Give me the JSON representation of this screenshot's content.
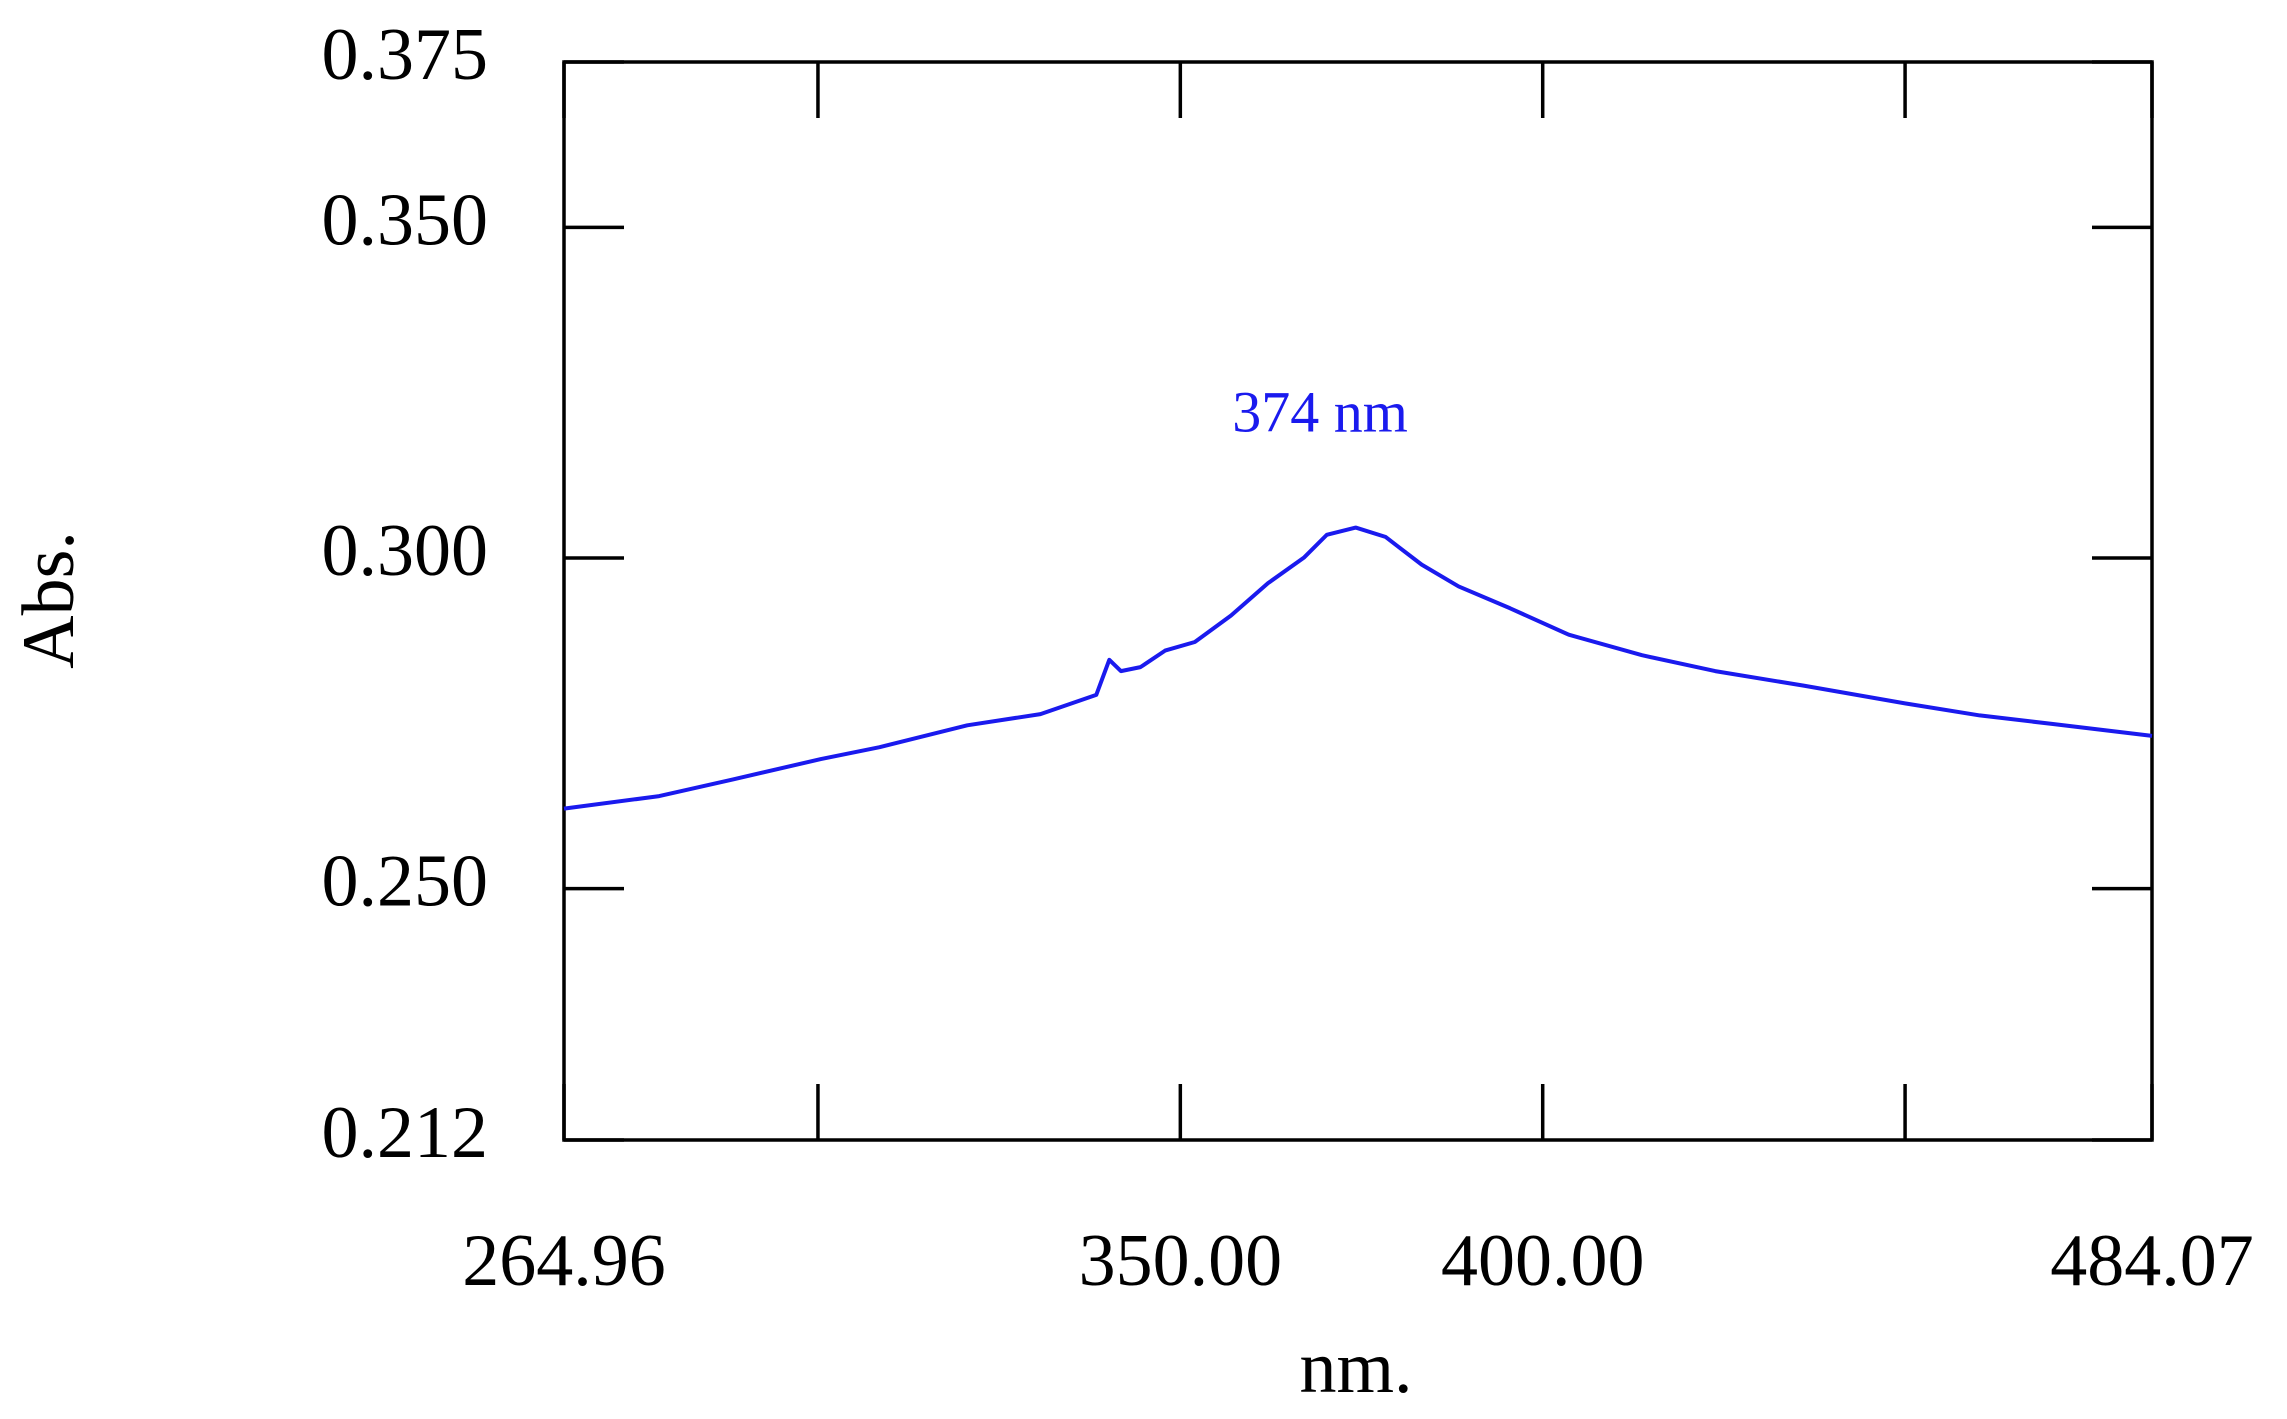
{
  "chart_data": {
    "type": "line",
    "xlabel": "nm.",
    "ylabel": "Abs.",
    "annotation": "374 nm",
    "color": "#1a1aee",
    "x": [
      264.96,
      278.1,
      288.2,
      300.4,
      308.5,
      320.6,
      330.7,
      338.4,
      340.2,
      341.8,
      344.5,
      347.9,
      352.0,
      357.0,
      362.1,
      367.1,
      370.2,
      374.2,
      378.3,
      383.3,
      388.4,
      395.5,
      403.6,
      413.7,
      423.8,
      436.0,
      450.1,
      460.3,
      470.4,
      484.07
    ],
    "values": [
      0.2621,
      0.264,
      0.2665,
      0.2696,
      0.2714,
      0.2747,
      0.2764,
      0.2793,
      0.2846,
      0.2829,
      0.2835,
      0.286,
      0.2873,
      0.2913,
      0.2962,
      0.3001,
      0.3035,
      0.3046,
      0.3032,
      0.299,
      0.2957,
      0.2924,
      0.2884,
      0.2853,
      0.2829,
      0.2807,
      0.278,
      0.2762,
      0.2749,
      0.2731
    ],
    "xlim": [
      264.96,
      484.07
    ],
    "xticks": [
      264.96,
      {
        "value": 300,
        "label": null
      },
      {
        "value": 350,
        "label": "350.00"
      },
      {
        "value": 400,
        "label": "400.00"
      },
      {
        "value": 450,
        "label": null
      },
      484.07
    ],
    "ylim": [
      0.212,
      0.375
    ],
    "yticks": [
      0.375,
      {
        "value": 0.35,
        "label": "0.350"
      },
      {
        "value": 0.3,
        "label": "0.300"
      },
      {
        "value": 0.25,
        "label": "0.250"
      },
      0.212
    ]
  }
}
